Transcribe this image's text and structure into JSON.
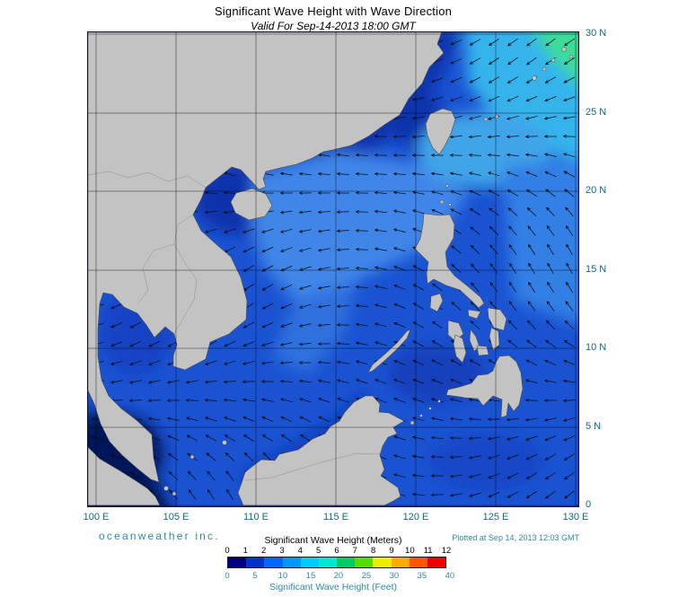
{
  "title": "Significant Wave Height with Wave Direction",
  "subtitle": "Valid For Sep-14-2013 18:00 GMT",
  "map": {
    "lat_labels": [
      "30 N",
      "25 N",
      "20 N",
      "15 N",
      "10 N",
      "5 N",
      "0"
    ],
    "lon_labels": [
      "100 E",
      "105 E",
      "110 E",
      "115 E",
      "120 E",
      "125 E",
      "130 E"
    ]
  },
  "footer": {
    "brand": "oceanweather inc.",
    "plotted": "Plotted at Sep 14, 2013 12:03 GMT"
  },
  "legend": {
    "meters_label": "Significant Wave Height (Meters)",
    "feet_label": "Significant Wave Height (Feet)",
    "meters_ticks": [
      "0",
      "1",
      "2",
      "3",
      "4",
      "5",
      "6",
      "7",
      "8",
      "9",
      "10",
      "11",
      "12"
    ],
    "feet_ticks": [
      "0",
      "5",
      "10",
      "15",
      "20",
      "25",
      "30",
      "35",
      "40"
    ],
    "colors": [
      "#000080",
      "#0033cc",
      "#0066ff",
      "#0099ff",
      "#00ccff",
      "#00e8d0",
      "#00cc66",
      "#55dd00",
      "#eeee00",
      "#ffaa00",
      "#ff5500",
      "#ee0000"
    ]
  },
  "colors": {
    "axis_label": "#0e6a78",
    "brand_teal": "#2e8c9e",
    "ocean_base": "#1a53d2",
    "land_gray": "#c3c3c3"
  }
}
